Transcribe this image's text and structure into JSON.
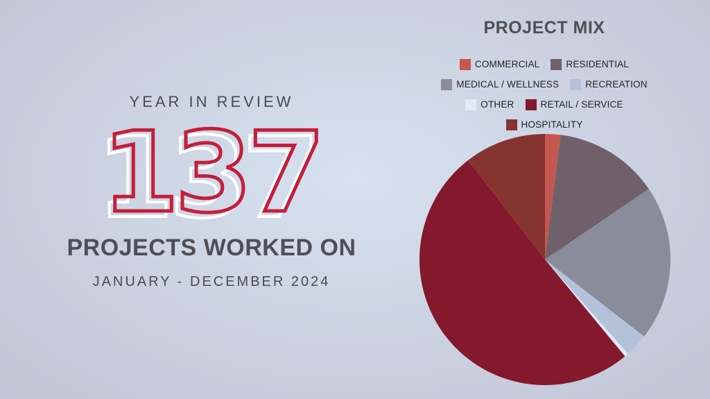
{
  "left": {
    "eyebrow": "YEAR IN REVIEW",
    "big_number": "137",
    "headline": "PROJECTS WORKED ON",
    "date_range": "JANUARY - DECEMBER 2024"
  },
  "chart_data": {
    "type": "pie",
    "title": "PROJECT MIX",
    "legend_position": "top",
    "slices": [
      {
        "label": "COMMERCIAL",
        "value": 2,
        "color": "#c4574f"
      },
      {
        "label": "RESIDENTIAL",
        "value": 13.5,
        "color": "#6e6169"
      },
      {
        "label": "MEDICAL / WELLNESS",
        "value": 20,
        "color": "#8a8c99"
      },
      {
        "label": "RECREATION",
        "value": 3,
        "color": "#b3c1d9"
      },
      {
        "label": "OTHER",
        "value": 0.5,
        "color": "#e2e9f3"
      },
      {
        "label": "RETAIL / SERVICE",
        "value": 50.5,
        "color": "#84182c"
      },
      {
        "label": "HOSPITALITY",
        "value": 10.5,
        "color": "#863430"
      }
    ],
    "legend_rows": [
      [
        0,
        1
      ],
      [
        2,
        3
      ],
      [
        4,
        5
      ],
      [
        6
      ]
    ]
  }
}
